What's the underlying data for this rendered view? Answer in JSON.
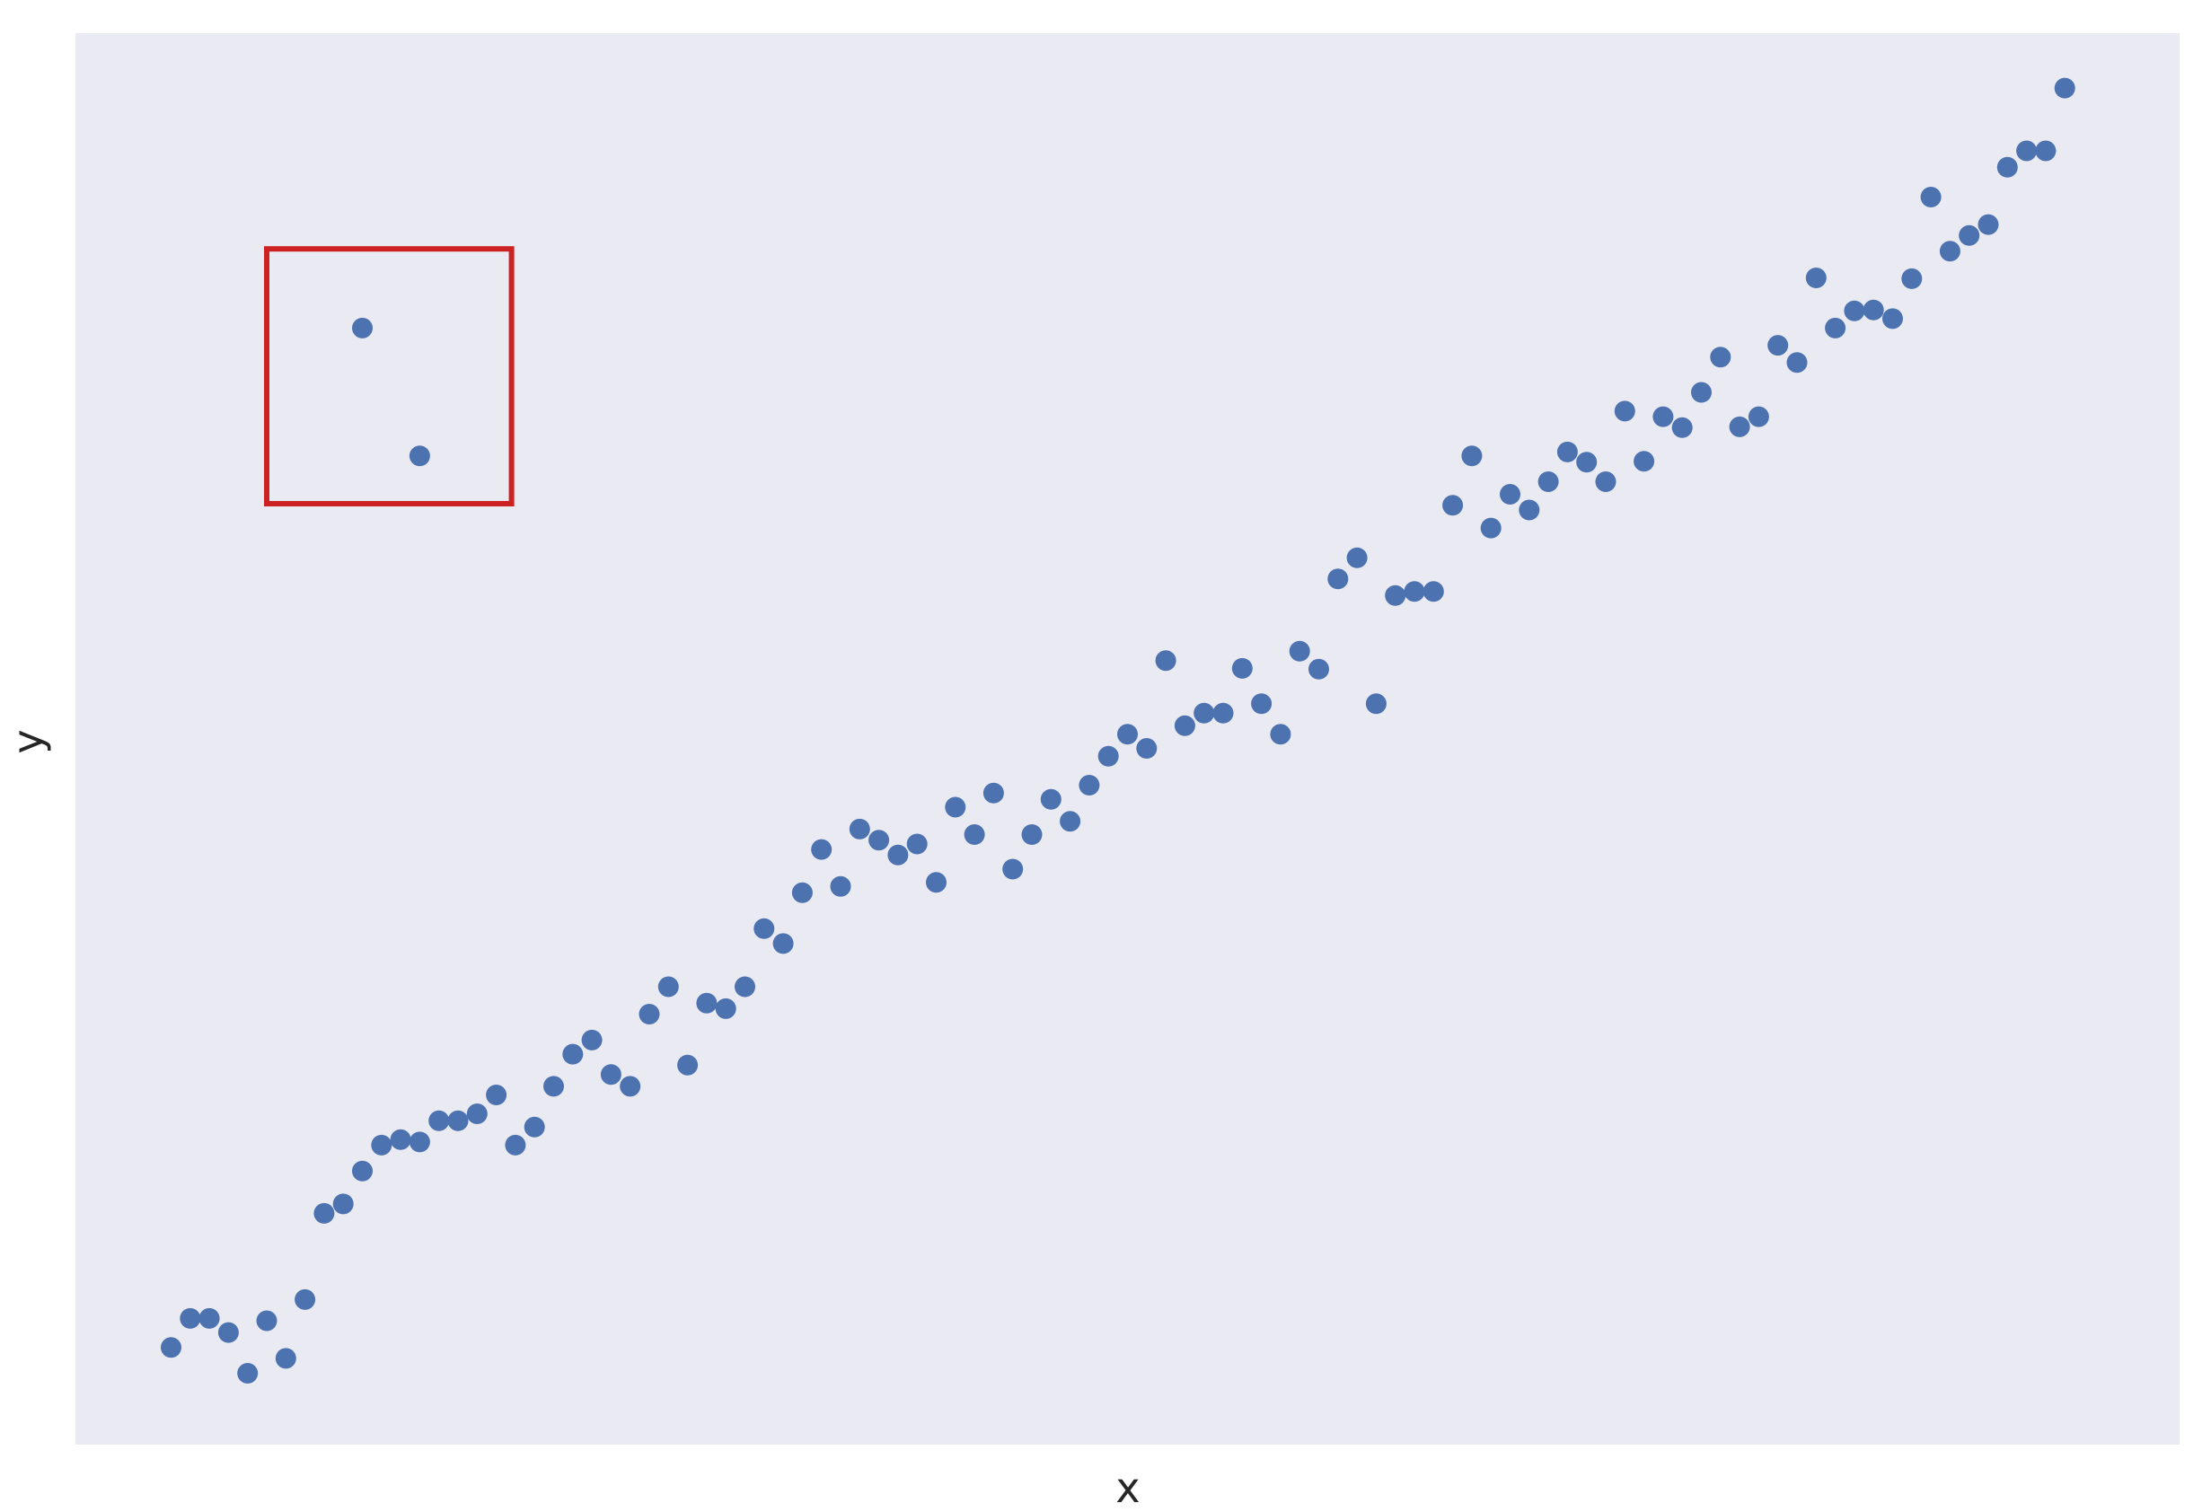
{
  "chart_data": {
    "type": "scatter",
    "title": "",
    "xlabel": "x",
    "ylabel": "y",
    "xlim": [
      -5,
      105
    ],
    "ylim": [
      -10,
      170
    ],
    "grid": false,
    "x_ticks_shown": false,
    "y_ticks_shown": false,
    "colors": {
      "background": "#eaeaf2",
      "point": "#4c72b0",
      "highlight_box": "#cc2222"
    },
    "series": [
      {
        "values": [
          {
            "x": 0,
            "y": 2.4
          },
          {
            "x": 1,
            "y": 6.1
          },
          {
            "x": 2,
            "y": 6.1
          },
          {
            "x": 3,
            "y": 4.3
          },
          {
            "x": 4,
            "y": -0.9
          },
          {
            "x": 5,
            "y": 5.8
          },
          {
            "x": 6,
            "y": 1.0
          },
          {
            "x": 7,
            "y": 8.5
          },
          {
            "x": 8,
            "y": 19.5
          },
          {
            "x": 9,
            "y": 20.7
          },
          {
            "x": 10,
            "y": 24.9
          },
          {
            "x": 11,
            "y": 28.2
          },
          {
            "x": 12,
            "y": 28.9
          },
          {
            "x": 13,
            "y": 28.6
          },
          {
            "x": 14,
            "y": 31.3
          },
          {
            "x": 15,
            "y": 31.3
          },
          {
            "x": 16,
            "y": 32.2
          },
          {
            "x": 17,
            "y": 34.6
          },
          {
            "x": 18,
            "y": 28.2
          },
          {
            "x": 19,
            "y": 30.5
          },
          {
            "x": 20,
            "y": 35.7
          },
          {
            "x": 21,
            "y": 39.8
          },
          {
            "x": 22,
            "y": 41.6
          },
          {
            "x": 23,
            "y": 37.2
          },
          {
            "x": 24,
            "y": 35.7
          },
          {
            "x": 25,
            "y": 44.9
          },
          {
            "x": 26,
            "y": 48.4
          },
          {
            "x": 27,
            "y": 38.4
          },
          {
            "x": 28,
            "y": 46.3
          },
          {
            "x": 29,
            "y": 45.6
          },
          {
            "x": 30,
            "y": 48.4
          },
          {
            "x": 31,
            "y": 55.8
          },
          {
            "x": 32,
            "y": 53.9
          },
          {
            "x": 33,
            "y": 60.4
          },
          {
            "x": 34,
            "y": 65.9
          },
          {
            "x": 35,
            "y": 61.2
          },
          {
            "x": 36,
            "y": 68.5
          },
          {
            "x": 37,
            "y": 67.1
          },
          {
            "x": 38,
            "y": 65.2
          },
          {
            "x": 39,
            "y": 66.6
          },
          {
            "x": 40,
            "y": 61.7
          },
          {
            "x": 41,
            "y": 71.3
          },
          {
            "x": 42,
            "y": 67.8
          },
          {
            "x": 43,
            "y": 73.1
          },
          {
            "x": 44,
            "y": 63.4
          },
          {
            "x": 45,
            "y": 67.8
          },
          {
            "x": 46,
            "y": 72.3
          },
          {
            "x": 47,
            "y": 69.5
          },
          {
            "x": 48,
            "y": 74.1
          },
          {
            "x": 49,
            "y": 77.8
          },
          {
            "x": 50,
            "y": 80.6
          },
          {
            "x": 51,
            "y": 78.8
          },
          {
            "x": 52,
            "y": 90.0
          },
          {
            "x": 53,
            "y": 81.7
          },
          {
            "x": 54,
            "y": 83.3
          },
          {
            "x": 55,
            "y": 83.3
          },
          {
            "x": 56,
            "y": 89.0
          },
          {
            "x": 57,
            "y": 84.5
          },
          {
            "x": 58,
            "y": 80.6
          },
          {
            "x": 59,
            "y": 91.2
          },
          {
            "x": 60,
            "y": 88.9
          },
          {
            "x": 61,
            "y": 100.4
          },
          {
            "x": 62,
            "y": 103.1
          },
          {
            "x": 63,
            "y": 84.5
          },
          {
            "x": 64,
            "y": 98.3
          },
          {
            "x": 65,
            "y": 98.8
          },
          {
            "x": 66,
            "y": 98.8
          },
          {
            "x": 67,
            "y": 109.8
          },
          {
            "x": 68,
            "y": 116.1
          },
          {
            "x": 69,
            "y": 106.9
          },
          {
            "x": 70,
            "y": 111.2
          },
          {
            "x": 71,
            "y": 109.2
          },
          {
            "x": 72,
            "y": 112.8
          },
          {
            "x": 73,
            "y": 116.6
          },
          {
            "x": 74,
            "y": 115.3
          },
          {
            "x": 75,
            "y": 112.8
          },
          {
            "x": 76,
            "y": 121.8
          },
          {
            "x": 77,
            "y": 115.4
          },
          {
            "x": 78,
            "y": 121.1
          },
          {
            "x": 79,
            "y": 119.7
          },
          {
            "x": 80,
            "y": 124.2
          },
          {
            "x": 81,
            "y": 128.7
          },
          {
            "x": 82,
            "y": 119.8
          },
          {
            "x": 83,
            "y": 121.1
          },
          {
            "x": 84,
            "y": 130.2
          },
          {
            "x": 85,
            "y": 128.0
          },
          {
            "x": 86,
            "y": 138.8
          },
          {
            "x": 87,
            "y": 132.4
          },
          {
            "x": 88,
            "y": 134.6
          },
          {
            "x": 89,
            "y": 134.7
          },
          {
            "x": 90,
            "y": 133.6
          },
          {
            "x": 91,
            "y": 138.7
          },
          {
            "x": 92,
            "y": 149.1
          },
          {
            "x": 93,
            "y": 142.2
          },
          {
            "x": 94,
            "y": 144.2
          },
          {
            "x": 95,
            "y": 145.6
          },
          {
            "x": 96,
            "y": 152.9
          },
          {
            "x": 97,
            "y": 155.0
          },
          {
            "x": 98,
            "y": 155.0
          },
          {
            "x": 99,
            "y": 163.0
          }
        ]
      },
      {
        "values": [
          {
            "x": 10,
            "y": 132.4
          },
          {
            "x": 13,
            "y": 116.1
          }
        ]
      }
    ],
    "annotations": [
      {
        "type": "rectangle",
        "x_range": [
          5,
          17.8
        ],
        "y_range": [
          110.0,
          142.5
        ]
      }
    ]
  }
}
